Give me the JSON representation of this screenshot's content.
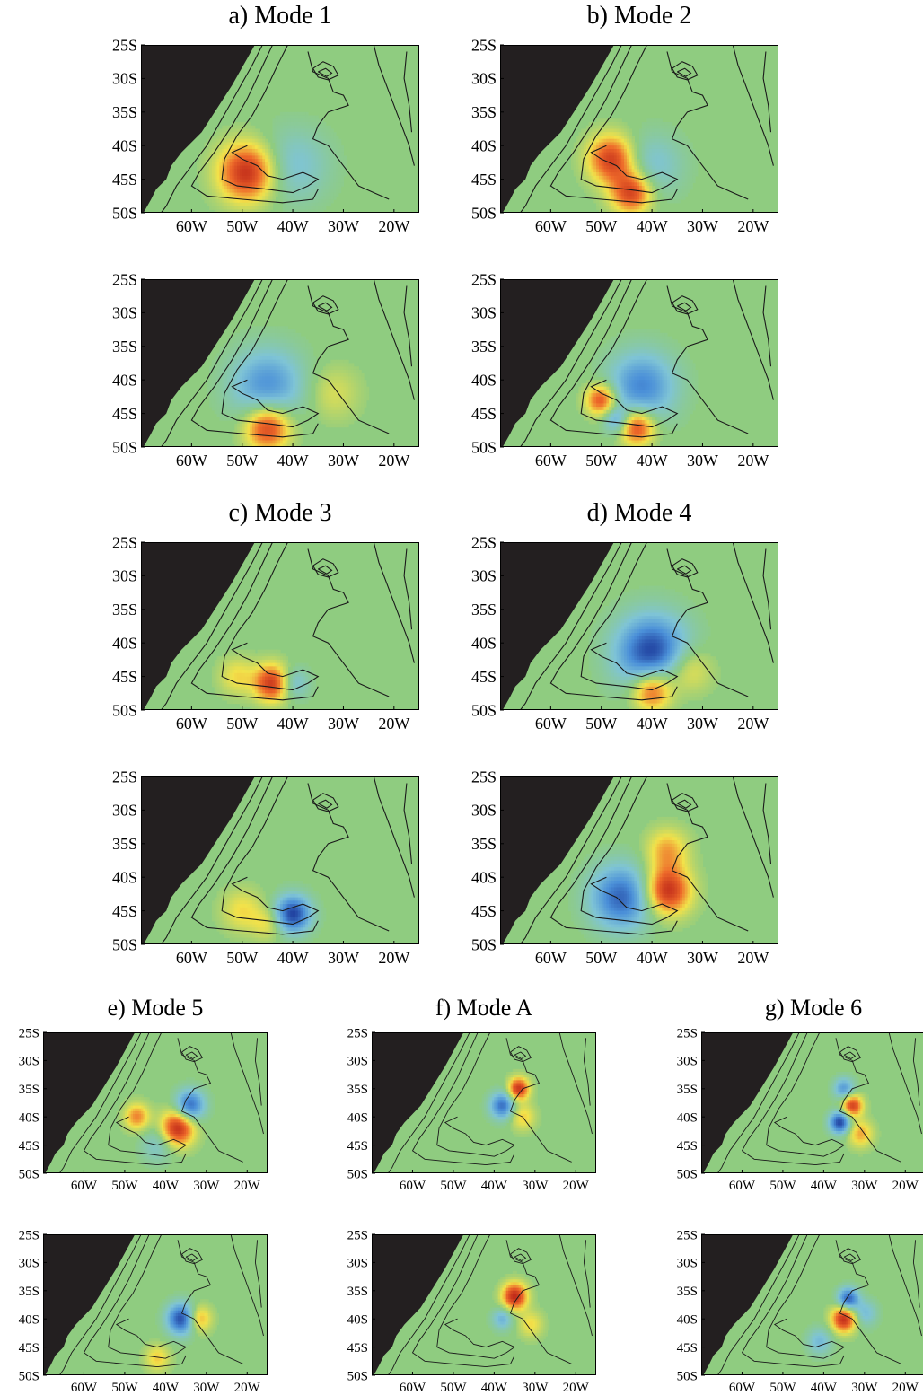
{
  "figure": {
    "lat_labels": [
      "25S",
      "30S",
      "35S",
      "40S",
      "45S",
      "50S"
    ],
    "lon_labels": [
      "60W",
      "50W",
      "40W",
      "30W",
      "20W"
    ],
    "lat_values": [
      -25,
      -30,
      -35,
      -40,
      -45,
      -50
    ],
    "lon_values": [
      -60,
      -50,
      -40,
      -30,
      -20
    ],
    "lon_range": [
      -70,
      -15
    ],
    "lat_range": [
      -25,
      -50
    ],
    "colormap": {
      "background": "#8fcc80",
      "land": "#231f20",
      "positive_strong": "#c02a1a",
      "positive_mid": "#ee6a2a",
      "positive_weak": "#f2e24a",
      "negative_weak": "#7fc4d6",
      "negative_mid": "#4a8fd8",
      "negative_strong": "#1f3f9e",
      "contour": "#1a1a1a"
    }
  },
  "panels": [
    {
      "id": "a",
      "title": "a) Mode 1",
      "blobs": [
        {
          "lon": -49,
          "lat": -44,
          "r": 5.5,
          "sign": 1,
          "amp": 1.0
        },
        {
          "lon": -40,
          "lat": -43,
          "r": 7,
          "sign": -1,
          "amp": 0.35
        }
      ]
    },
    {
      "id": "a2",
      "title": "",
      "blobs": [
        {
          "lon": -45,
          "lat": -41,
          "r": 7,
          "sign": -1,
          "amp": 0.65
        },
        {
          "lon": -45,
          "lat": -47,
          "r": 4.5,
          "sign": 1,
          "amp": 0.95
        },
        {
          "lon": -32,
          "lat": -42,
          "r": 5,
          "sign": 1,
          "amp": 0.25
        }
      ]
    },
    {
      "id": "b",
      "title": "b) Mode 2",
      "blobs": [
        {
          "lon": -48,
          "lat": -42,
          "r": 4.5,
          "sign": 1,
          "amp": 0.9
        },
        {
          "lon": -44,
          "lat": -47,
          "r": 4,
          "sign": 1,
          "amp": 0.9
        },
        {
          "lon": -40,
          "lat": -43,
          "r": 6,
          "sign": -1,
          "amp": 0.35
        }
      ]
    },
    {
      "id": "b2",
      "title": "",
      "blobs": [
        {
          "lon": -42,
          "lat": -41,
          "r": 6.5,
          "sign": -1,
          "amp": 0.7
        },
        {
          "lon": -50,
          "lat": -43,
          "r": 3,
          "sign": 1,
          "amp": 0.85
        },
        {
          "lon": -43,
          "lat": -47,
          "r": 3.5,
          "sign": 1,
          "amp": 0.9
        },
        {
          "lon": -47,
          "lat": -46,
          "r": 2.5,
          "sign": -1,
          "amp": 0.5
        }
      ]
    },
    {
      "id": "c",
      "title": "c) Mode 3",
      "blobs": [
        {
          "lon": -44,
          "lat": -46,
          "r": 3.5,
          "sign": 1,
          "amp": 0.95
        },
        {
          "lon": -51,
          "lat": -45,
          "r": 3.5,
          "sign": 1,
          "amp": 0.35
        },
        {
          "lon": -40,
          "lat": -46,
          "r": 3,
          "sign": -1,
          "amp": 0.45
        }
      ]
    },
    {
      "id": "c2",
      "title": "",
      "blobs": [
        {
          "lon": -40,
          "lat": -45.5,
          "r": 3.5,
          "sign": -1,
          "amp": 1.0
        },
        {
          "lon": -50,
          "lat": -45,
          "r": 4,
          "sign": 1,
          "amp": 0.35
        },
        {
          "lon": -45,
          "lat": -47,
          "r": 3,
          "sign": 1,
          "amp": 0.3
        }
      ]
    },
    {
      "id": "d",
      "title": "d) Mode 4",
      "blobs": [
        {
          "lon": -40,
          "lat": -41.5,
          "r": 7,
          "sign": -1,
          "amp": 1.0
        },
        {
          "lon": -40,
          "lat": -47,
          "r": 4,
          "sign": 1,
          "amp": 0.9
        },
        {
          "lon": -33,
          "lat": -44,
          "r": 4.5,
          "sign": 1,
          "amp": 0.45
        }
      ]
    },
    {
      "id": "d2",
      "title": "",
      "blobs": [
        {
          "lon": -46,
          "lat": -43,
          "r": 6,
          "sign": -1,
          "amp": 0.85
        },
        {
          "lon": -37,
          "lat": -42,
          "r": 4.5,
          "sign": 1,
          "amp": 1.0
        },
        {
          "lon": -37,
          "lat": -36,
          "r": 4,
          "sign": 1,
          "amp": 0.5
        }
      ]
    },
    {
      "id": "e",
      "title": "e) Mode 5",
      "blobs": [
        {
          "lon": -37,
          "lat": -42,
          "r": 4,
          "sign": 1,
          "amp": 1.0
        },
        {
          "lon": -34,
          "lat": -38,
          "r": 3.5,
          "sign": -1,
          "amp": 0.85
        },
        {
          "lon": -47,
          "lat": -40,
          "r": 3,
          "sign": 1,
          "amp": 0.6
        },
        {
          "lon": -42,
          "lat": -45,
          "r": 4,
          "sign": -1,
          "amp": 0.3
        }
      ]
    },
    {
      "id": "e2",
      "title": "",
      "blobs": [
        {
          "lon": -36,
          "lat": -40,
          "r": 3.5,
          "sign": -1,
          "amp": 1.0
        },
        {
          "lon": -32,
          "lat": -40,
          "r": 3,
          "sign": 1,
          "amp": 0.6
        },
        {
          "lon": -42,
          "lat": -47,
          "r": 3,
          "sign": 1,
          "amp": 0.4
        }
      ]
    },
    {
      "id": "f",
      "title": "f) Mode A",
      "blobs": [
        {
          "lon": -34,
          "lat": -35,
          "r": 2.5,
          "sign": 1,
          "amp": 0.95
        },
        {
          "lon": -38,
          "lat": -38,
          "r": 3,
          "sign": -1,
          "amp": 0.8
        },
        {
          "lon": -33,
          "lat": -40,
          "r": 3,
          "sign": 1,
          "amp": 0.4
        }
      ]
    },
    {
      "id": "f2",
      "title": "",
      "blobs": [
        {
          "lon": -35,
          "lat": -36,
          "r": 3,
          "sign": 1,
          "amp": 1.0
        },
        {
          "lon": -38,
          "lat": -40,
          "r": 2.5,
          "sign": -1,
          "amp": 0.45
        },
        {
          "lon": -31,
          "lat": -41,
          "r": 3,
          "sign": 1,
          "amp": 0.35
        }
      ]
    },
    {
      "id": "g",
      "title": "g) Mode 6",
      "blobs": [
        {
          "lon": -33,
          "lat": -38,
          "r": 2.5,
          "sign": 1,
          "amp": 0.9
        },
        {
          "lon": -36,
          "lat": -41,
          "r": 2.5,
          "sign": -1,
          "amp": 1.0
        },
        {
          "lon": -35,
          "lat": -35,
          "r": 2.5,
          "sign": -1,
          "amp": 0.6
        },
        {
          "lon": -31,
          "lat": -43,
          "r": 3,
          "sign": 1,
          "amp": 0.5
        }
      ]
    },
    {
      "id": "g2",
      "title": "",
      "blobs": [
        {
          "lon": -35,
          "lat": -40,
          "r": 3,
          "sign": 1,
          "amp": 1.0
        },
        {
          "lon": -34,
          "lat": -36.5,
          "r": 2.5,
          "sign": -1,
          "amp": 0.9
        },
        {
          "lon": -30,
          "lat": -39,
          "r": 3,
          "sign": -1,
          "amp": 0.4
        },
        {
          "lon": -41,
          "lat": -44,
          "r": 3,
          "sign": -1,
          "amp": 0.4
        }
      ]
    }
  ]
}
